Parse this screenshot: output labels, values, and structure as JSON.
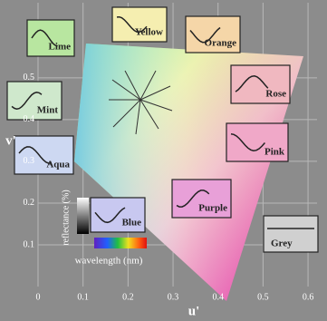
{
  "chart_data": {
    "type": "chromaticity",
    "x_label": "u'",
    "y_label": "v'",
    "xlim": [
      0,
      0.62
    ],
    "ylim": [
      0,
      0.68
    ],
    "xticks": [
      0,
      0.1,
      0.2,
      0.3,
      0.4,
      0.5,
      0.6
    ],
    "yticks": [
      0.1,
      0.2,
      0.3,
      0.4,
      0.5
    ],
    "grid": true,
    "annotations": [
      "Lime",
      "Yellow",
      "Orange",
      "Mint",
      "Rose",
      "Aqua",
      "Pink",
      "Blue",
      "Purple",
      "Grey"
    ],
    "inset_labels": [
      "reflectance (%)",
      "wavelength (nm)"
    ]
  }
}
